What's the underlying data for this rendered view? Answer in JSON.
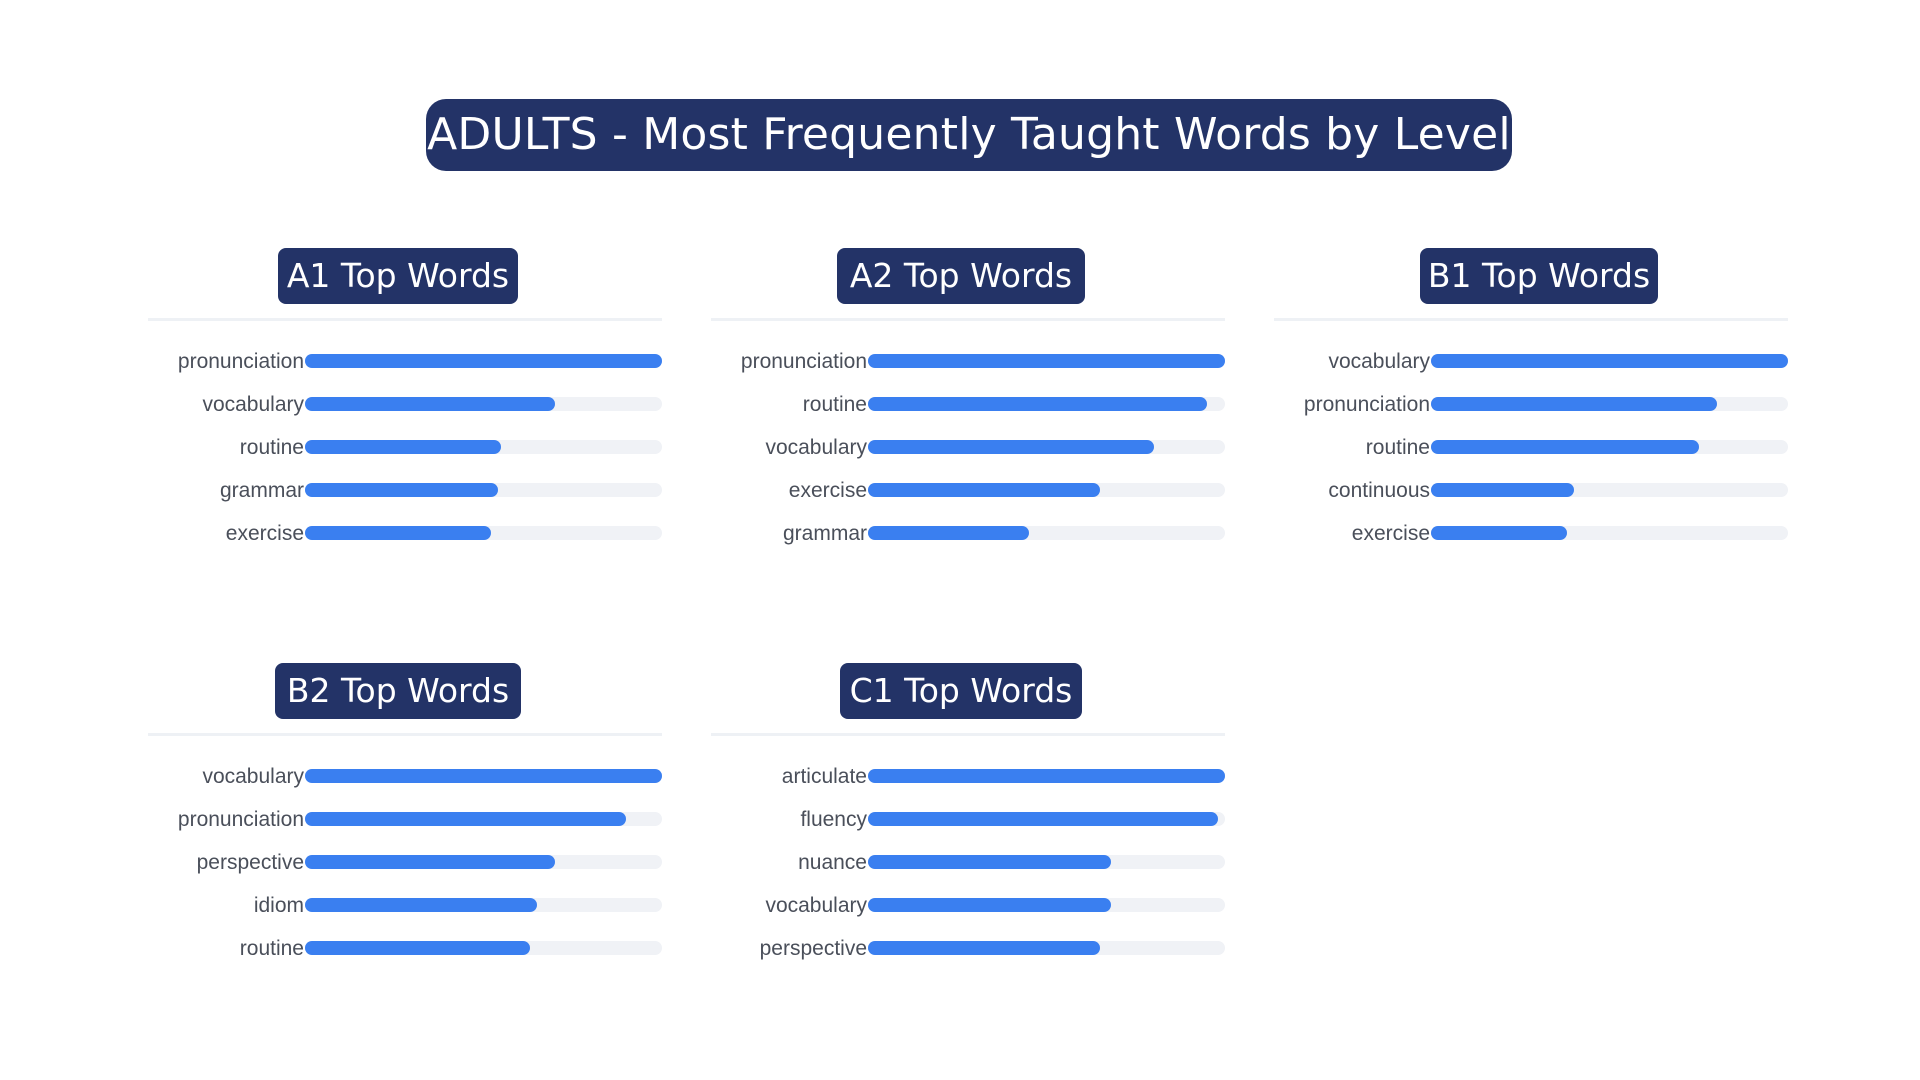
{
  "title": "ADULTS - Most Frequently Taught Words by Level",
  "colors": {
    "title_bg": "#233367",
    "title_text": "#ffffff",
    "bar_fill": "#3a7ff0",
    "bar_track": "#f0f2f6",
    "label_text": "#4a4f5a"
  },
  "chart_data": [
    {
      "type": "bar",
      "orientation": "horizontal",
      "title": "A1 Top Words",
      "categories": [
        "pronunciation",
        "vocabulary",
        "routine",
        "grammar",
        "exercise"
      ],
      "values": [
        1.0,
        0.7,
        0.55,
        0.54,
        0.52
      ],
      "xlim": [
        0,
        1
      ]
    },
    {
      "type": "bar",
      "orientation": "horizontal",
      "title": "A2 Top Words",
      "categories": [
        "pronunciation",
        "routine",
        "vocabulary",
        "exercise",
        "grammar"
      ],
      "values": [
        1.0,
        0.95,
        0.8,
        0.65,
        0.45
      ],
      "xlim": [
        0,
        1
      ]
    },
    {
      "type": "bar",
      "orientation": "horizontal",
      "title": "B1 Top Words",
      "categories": [
        "vocabulary",
        "pronunciation",
        "routine",
        "continuous",
        "exercise"
      ],
      "values": [
        1.0,
        0.8,
        0.75,
        0.4,
        0.38
      ],
      "xlim": [
        0,
        1
      ]
    },
    {
      "type": "bar",
      "orientation": "horizontal",
      "title": "B2 Top Words",
      "categories": [
        "vocabulary",
        "pronunciation",
        "perspective",
        "idiom",
        "routine"
      ],
      "values": [
        1.0,
        0.9,
        0.7,
        0.65,
        0.63
      ],
      "xlim": [
        0,
        1
      ]
    },
    {
      "type": "bar",
      "orientation": "horizontal",
      "title": "C1 Top Words",
      "categories": [
        "articulate",
        "fluency",
        "nuance",
        "vocabulary",
        "perspective"
      ],
      "values": [
        1.0,
        0.98,
        0.68,
        0.68,
        0.65
      ],
      "xlim": [
        0,
        1
      ]
    }
  ]
}
